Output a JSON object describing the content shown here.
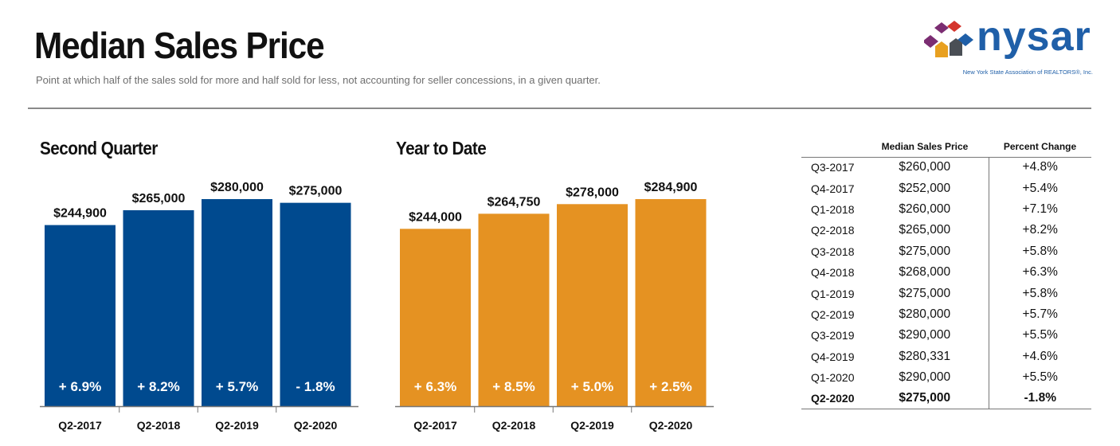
{
  "header": {
    "title": "Median Sales Price",
    "subtitle": "Point at which half of the sales sold for more and half sold for less, not accounting for seller concessions, in a given quarter."
  },
  "logo": {
    "wordmark": "nysar",
    "tagline": "New York State Association of REALTORS®, Inc.",
    "icon": "house-cluster-icon",
    "colors": [
      "#7b2d72",
      "#d4342c",
      "#e8a020",
      "#4a4f55",
      "#1f5fa8"
    ]
  },
  "chart_data": [
    {
      "type": "bar",
      "title": "Second Quarter",
      "categories": [
        "Q2-2017",
        "Q2-2018",
        "Q2-2019",
        "Q2-2020"
      ],
      "values": [
        244900,
        265000,
        280000,
        275000
      ],
      "value_labels": [
        "$244,900",
        "$265,000",
        "$280,000",
        "$275,000"
      ],
      "change_labels": [
        "+ 6.9%",
        "+ 8.2%",
        "+ 5.7%",
        "- 1.8%"
      ],
      "color": "#004a8f",
      "ylim": [
        0,
        280000
      ]
    },
    {
      "type": "bar",
      "title": "Year to Date",
      "categories": [
        "Q2-2017",
        "Q2-2018",
        "Q2-2019",
        "Q2-2020"
      ],
      "values": [
        244000,
        264750,
        278000,
        284900
      ],
      "value_labels": [
        "$244,000",
        "$264,750",
        "$278,000",
        "$284,900"
      ],
      "change_labels": [
        "+ 6.3%",
        "+ 8.5%",
        "+ 5.0%",
        "+ 2.5%"
      ],
      "color": "#e59222",
      "ylim": [
        0,
        284900
      ]
    }
  ],
  "table": {
    "headers": [
      "",
      "Median Sales Price",
      "Percent Change"
    ],
    "rows": [
      [
        "Q3-2017",
        "$260,000",
        "+4.8%"
      ],
      [
        "Q4-2017",
        "$252,000",
        "+5.4%"
      ],
      [
        "Q1-2018",
        "$260,000",
        "+7.1%"
      ],
      [
        "Q2-2018",
        "$265,000",
        "+8.2%"
      ],
      [
        "Q3-2018",
        "$275,000",
        "+5.8%"
      ],
      [
        "Q4-2018",
        "$268,000",
        "+6.3%"
      ],
      [
        "Q1-2019",
        "$275,000",
        "+5.8%"
      ],
      [
        "Q2-2019",
        "$280,000",
        "+5.7%"
      ],
      [
        "Q3-2019",
        "$290,000",
        "+5.5%"
      ],
      [
        "Q4-2019",
        "$280,331",
        "+4.6%"
      ],
      [
        "Q1-2020",
        "$290,000",
        "+5.5%"
      ],
      [
        "Q2-2020",
        "$275,000",
        "-1.8%"
      ]
    ]
  }
}
